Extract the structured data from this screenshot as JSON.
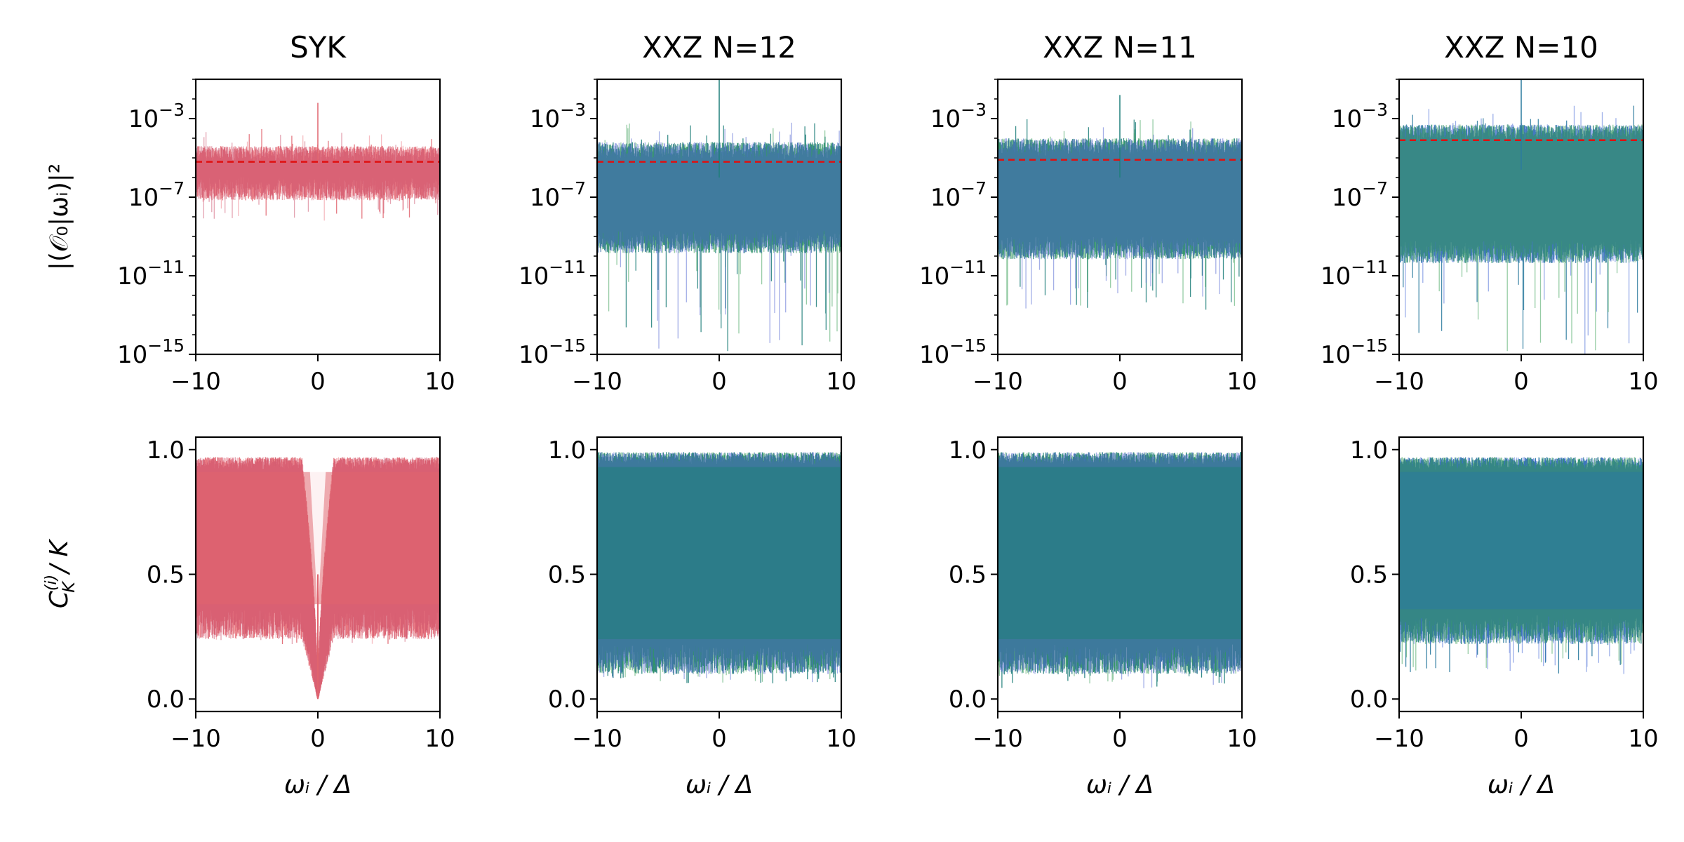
{
  "chart_data": {
    "type": "line",
    "layout": "2x4 grid",
    "ylabels": {
      "top": "|(𝒪₀|ωᵢ)|²",
      "bottom_main": "C",
      "bottom_sub": "K",
      "bottom_sup": "(i)",
      "bottom_tail": "/ K"
    },
    "xlabel": "ωᵢ / Δ",
    "xlim": [
      -10,
      10
    ],
    "xticks": [
      -10,
      0,
      10
    ],
    "top_row": {
      "scale": "log10",
      "ylim_exp": [
        -15,
        -1
      ],
      "yticks_exp": [
        -3,
        -7,
        -11,
        -15
      ],
      "ytick_base": "10",
      "ytick_minus": "−"
    },
    "bottom_row": {
      "ylim": [
        -0.05,
        1.05
      ],
      "yticks": [
        0.0,
        0.5,
        1.0
      ],
      "yticklabels": [
        "0.0",
        "0.5",
        "1.0"
      ]
    },
    "panels": [
      {
        "title": "SYK",
        "series_colors": [
          "#e0646e",
          "#ee7b86",
          "#c94a66"
        ],
        "top": {
          "center_exp": -5.2,
          "upper_exp": -4.4,
          "lower_exp": -6.8,
          "deep_min_exp": -8.2,
          "dashed_exp": -5.2,
          "center_spike_exp": -2.2
        },
        "bottom": {
          "upper": 0.97,
          "lower": 0.3,
          "deep_min": 0.22,
          "dip_width": 1.3,
          "dip_min": 0.0
        }
      },
      {
        "title": "XXZ N=12",
        "series_colors": [
          "#1f7f7a",
          "#2e9a4b",
          "#4a5fd0"
        ],
        "top": {
          "center_exp": -6.0,
          "upper_exp": -4.2,
          "lower_exp": -9.5,
          "deep_min_exp": -15.0,
          "dashed_exp": -5.2,
          "center_spike_exp": -0.5
        },
        "bottom": {
          "upper": 0.99,
          "lower": 0.16,
          "deep_min": 0.06,
          "dip_width": 0,
          "dip_min": 0.0
        }
      },
      {
        "title": "XXZ N=11",
        "series_colors": [
          "#1f7f7a",
          "#2e9a4b",
          "#4a5fd0"
        ],
        "top": {
          "center_exp": -6.0,
          "upper_exp": -4.0,
          "lower_exp": -9.8,
          "deep_min_exp": -12.8,
          "dashed_exp": -5.1,
          "center_spike_exp": -1.8
        },
        "bottom": {
          "upper": 0.99,
          "lower": 0.16,
          "deep_min": 0.04,
          "dip_width": 0,
          "dip_min": 0.0
        }
      },
      {
        "title": "XXZ N=10",
        "series_colors": [
          "#2a7a9e",
          "#3a60d4",
          "#2e9a4b"
        ],
        "top": {
          "center_exp": -5.6,
          "upper_exp": -3.3,
          "lower_exp": -10.0,
          "deep_min_exp": -15.0,
          "dashed_exp": -4.1,
          "center_spike_exp": -1.0
        },
        "bottom": {
          "upper": 0.97,
          "lower": 0.28,
          "deep_min": 0.1,
          "dip_width": 0,
          "dip_min": 0.0
        }
      }
    ],
    "dashed_line_color": "#e01010"
  }
}
